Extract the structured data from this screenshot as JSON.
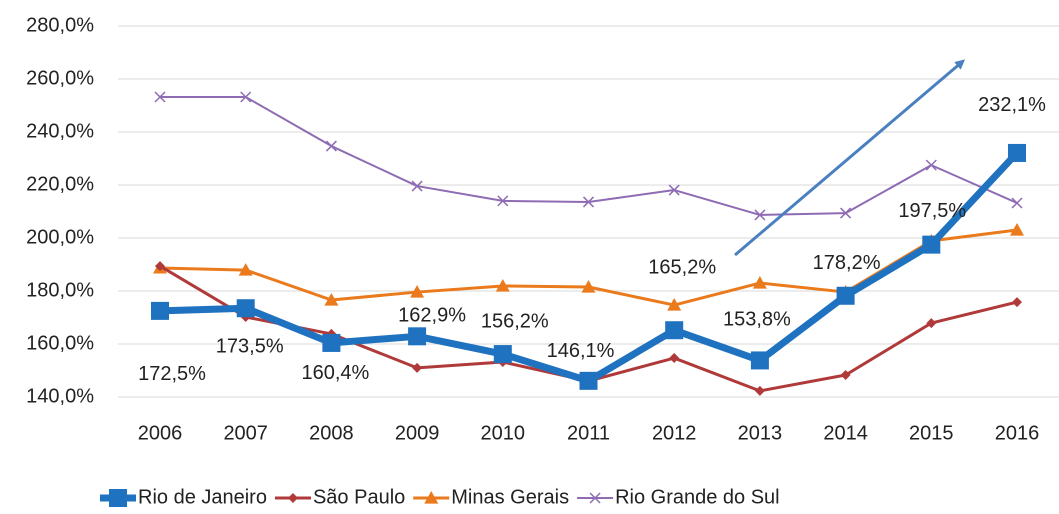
{
  "chart_data": {
    "type": "line",
    "categories": [
      "2006",
      "2007",
      "2008",
      "2009",
      "2010",
      "2011",
      "2012",
      "2013",
      "2014",
      "2015",
      "2016"
    ],
    "series": [
      {
        "name": "Rio de Janeiro",
        "color": "#1f72c0",
        "marker": "square",
        "values": [
          172.5,
          173.5,
          160.4,
          162.9,
          156.2,
          146.1,
          165.2,
          153.8,
          178.2,
          197.5,
          232.1
        ],
        "value_labels": [
          "172,5%",
          "173,5%",
          "160,4%",
          "162,9%",
          "156,2%",
          "146,1%",
          "165,2%",
          "153,8%",
          "178,2%",
          "197,5%",
          "232,1%"
        ]
      },
      {
        "name": "São Paulo",
        "color": "#b03a3a",
        "marker": "diamond",
        "values": [
          189.4,
          170.2,
          163.8,
          151,
          153.2,
          146,
          154.7,
          142.3,
          148.3,
          167.9,
          175.8
        ]
      },
      {
        "name": "Minas Gerais",
        "color": "#ea7a1c",
        "marker": "triangle",
        "values": [
          188.7,
          187.9,
          176.6,
          179.6,
          181.9,
          181.5,
          174.7,
          183,
          179.6,
          198.9,
          203
        ]
      },
      {
        "name": "Rio Grande do Sul",
        "color": "#8e6bb3",
        "marker": "x",
        "values": [
          253.2,
          253.2,
          234.7,
          219.6,
          214,
          213.6,
          218.1,
          208.7,
          209.4,
          227.5,
          213.2
        ]
      }
    ],
    "ylim": [
      140,
      280
    ],
    "yticks": [
      {
        "value": 140,
        "label": "140,0%"
      },
      {
        "value": 160,
        "label": "160,0%"
      },
      {
        "value": 180,
        "label": "180,0%"
      },
      {
        "value": 200,
        "label": "200,0%"
      },
      {
        "value": 220,
        "label": "220,0%"
      },
      {
        "value": 240,
        "label": "240,0%"
      },
      {
        "value": 260,
        "label": "260,0%"
      },
      {
        "value": 280,
        "label": "280,0%"
      }
    ],
    "grid": true
  }
}
